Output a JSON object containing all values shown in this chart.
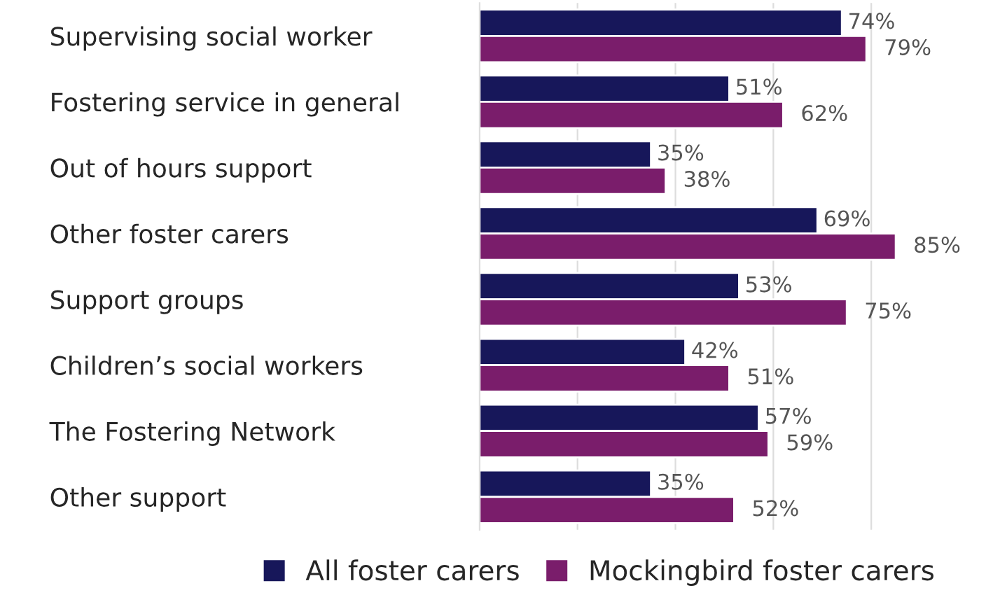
{
  "chart_data": {
    "type": "bar",
    "orientation": "horizontal",
    "categories": [
      "Supervising social worker",
      "Fostering service in general",
      "Out of hours support",
      "Other foster carers",
      "Support groups",
      "Children’s social workers",
      "The Fostering Network",
      "Other support"
    ],
    "series": [
      {
        "name": "All foster carers",
        "color": "#17175a",
        "values": [
          74,
          51,
          35,
          69,
          53,
          42,
          57,
          35
        ],
        "value_labels": [
          "74%",
          "51%",
          "35%",
          "69%",
          "53%",
          "42%",
          "57%",
          "35%"
        ]
      },
      {
        "name": "Mockingbird foster carers",
        "color": "#7a1d6b",
        "values": [
          79,
          62,
          38,
          85,
          75,
          51,
          59,
          52
        ],
        "value_labels": [
          "79%",
          "62%",
          "38%",
          "85%",
          "75%",
          "51%",
          "59%",
          "52%"
        ]
      }
    ],
    "tick_labels": "y",
    "grid": "x",
    "legend": "bottom"
  }
}
